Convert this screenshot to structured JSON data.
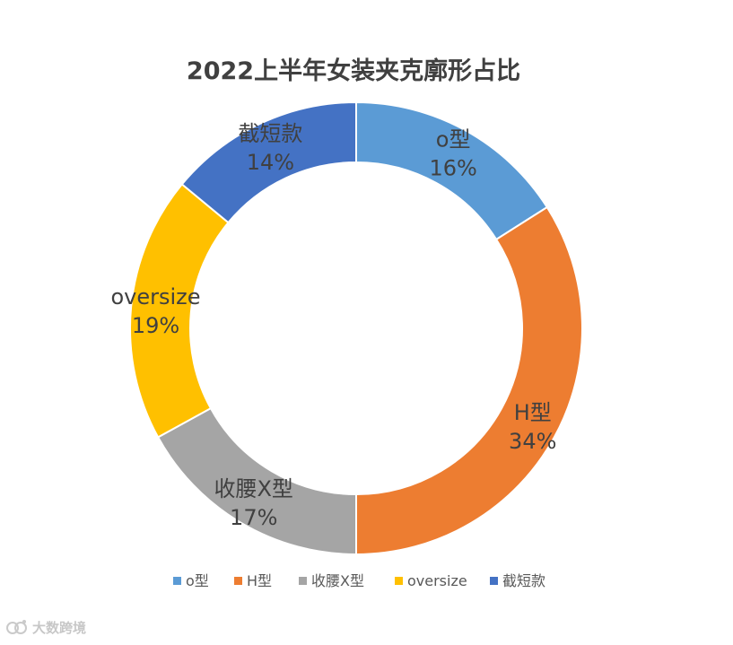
{
  "chart_data": {
    "type": "pie",
    "title": "2022上半年女装夹克廓形占比",
    "categories": [
      "o型",
      "H型",
      "收腰X型",
      "oversize",
      "截短款"
    ],
    "values": [
      16,
      34,
      17,
      19,
      14
    ],
    "value_labels": [
      "16%",
      "34%",
      "17%",
      "19%",
      "14%"
    ],
    "colors": [
      "#5B9BD5",
      "#ED7D31",
      "#A5A5A5",
      "#FFC000",
      "#4472C4"
    ],
    "legend": "bottom"
  },
  "watermark": {
    "text": "大数跨境"
  }
}
